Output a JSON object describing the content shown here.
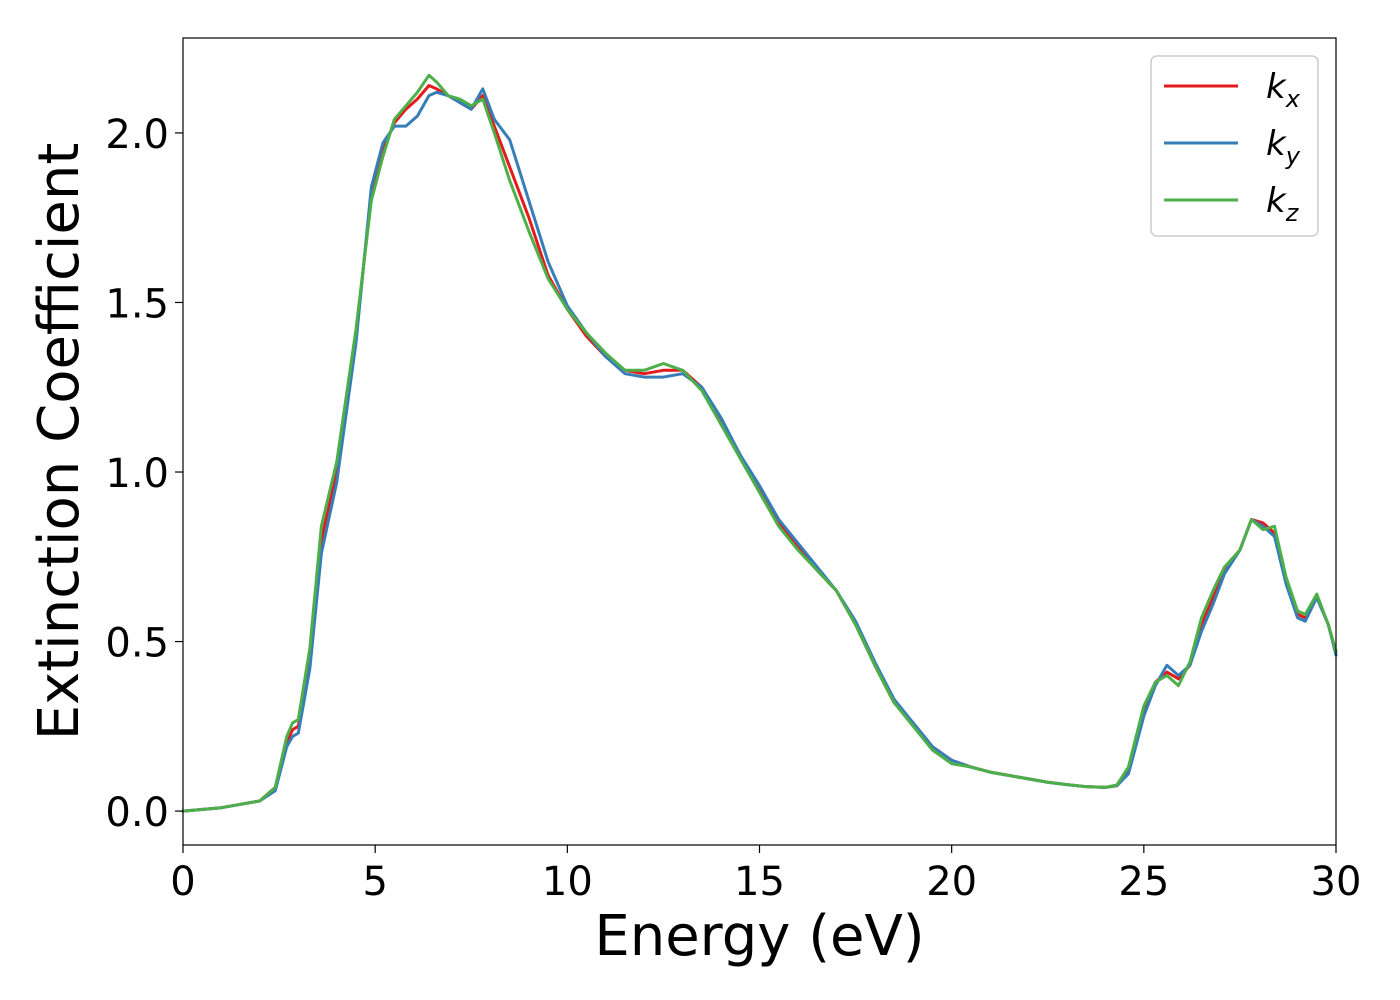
{
  "chart_data": {
    "type": "line",
    "xlabel": "Energy (eV)",
    "ylabel": "Extinction Coefficient",
    "xlim": [
      0,
      30
    ],
    "ylim": [
      -0.1,
      2.28
    ],
    "xticks": [
      0,
      5,
      10,
      15,
      20,
      25,
      30
    ],
    "yticks": [
      0.0,
      0.5,
      1.0,
      1.5,
      2.0
    ],
    "xtick_labels": [
      "0",
      "5",
      "10",
      "15",
      "20",
      "25",
      "30"
    ],
    "ytick_labels": [
      "0.0",
      "0.5",
      "1.0",
      "1.5",
      "2.0"
    ],
    "grid": false,
    "legend": "top-right",
    "series": [
      {
        "name": "k_x",
        "label_main": "k",
        "label_sub": "x",
        "color": "#e41a1c",
        "x": [
          0,
          1,
          2,
          2.4,
          2.7,
          2.85,
          3.0,
          3.3,
          3.6,
          4.0,
          4.5,
          4.9,
          5.2,
          5.5,
          5.8,
          6.1,
          6.4,
          6.6,
          6.9,
          7.2,
          7.5,
          7.8,
          8.1,
          8.5,
          9.0,
          9.5,
          10.0,
          10.5,
          11.0,
          11.5,
          12.0,
          12.5,
          13.0,
          13.5,
          14.0,
          14.5,
          15.0,
          15.5,
          16.0,
          16.5,
          17.0,
          17.5,
          18.0,
          18.5,
          19.0,
          19.5,
          20.0,
          20.5,
          21.0,
          21.5,
          22.0,
          22.5,
          23.0,
          23.5,
          24.0,
          24.3,
          24.6,
          25.0,
          25.3,
          25.6,
          25.9,
          26.2,
          26.5,
          26.8,
          27.1,
          27.5,
          27.8,
          28.1,
          28.4,
          28.7,
          29.0,
          29.2,
          29.5,
          29.8,
          30.0
        ],
        "y": [
          0.0,
          0.01,
          0.03,
          0.07,
          0.2,
          0.24,
          0.25,
          0.45,
          0.8,
          1.0,
          1.4,
          1.82,
          1.95,
          2.03,
          2.07,
          2.1,
          2.14,
          2.13,
          2.11,
          2.09,
          2.07,
          2.11,
          2.02,
          1.9,
          1.75,
          1.58,
          1.48,
          1.4,
          1.34,
          1.3,
          1.29,
          1.3,
          1.3,
          1.25,
          1.15,
          1.05,
          0.95,
          0.85,
          0.78,
          0.71,
          0.65,
          0.55,
          0.43,
          0.32,
          0.26,
          0.19,
          0.15,
          0.13,
          0.115,
          0.105,
          0.095,
          0.085,
          0.078,
          0.072,
          0.07,
          0.075,
          0.12,
          0.3,
          0.38,
          0.41,
          0.39,
          0.43,
          0.55,
          0.63,
          0.71,
          0.77,
          0.86,
          0.85,
          0.82,
          0.68,
          0.58,
          0.57,
          0.63,
          0.55,
          0.47
        ]
      },
      {
        "name": "k_y",
        "label_main": "k",
        "label_sub": "y",
        "color": "#377eb8",
        "x": [
          0,
          1,
          2,
          2.4,
          2.7,
          2.85,
          3.0,
          3.3,
          3.6,
          4.0,
          4.5,
          4.9,
          5.2,
          5.5,
          5.8,
          6.1,
          6.4,
          6.6,
          6.9,
          7.2,
          7.5,
          7.8,
          8.1,
          8.5,
          9.0,
          9.5,
          10.0,
          10.5,
          11.0,
          11.5,
          12.0,
          12.5,
          13.0,
          13.5,
          14.0,
          14.5,
          15.0,
          15.5,
          16.0,
          16.5,
          17.0,
          17.5,
          18.0,
          18.5,
          19.0,
          19.5,
          20.0,
          20.5,
          21.0,
          21.5,
          22.0,
          22.5,
          23.0,
          23.5,
          24.0,
          24.3,
          24.6,
          25.0,
          25.3,
          25.6,
          25.9,
          26.2,
          26.5,
          26.8,
          27.1,
          27.5,
          27.8,
          28.1,
          28.4,
          28.7,
          29.0,
          29.2,
          29.5,
          29.8,
          30.0
        ],
        "y": [
          0.0,
          0.01,
          0.03,
          0.06,
          0.19,
          0.22,
          0.23,
          0.42,
          0.76,
          0.97,
          1.38,
          1.84,
          1.97,
          2.02,
          2.02,
          2.05,
          2.11,
          2.12,
          2.11,
          2.09,
          2.07,
          2.13,
          2.04,
          1.98,
          1.8,
          1.62,
          1.49,
          1.41,
          1.34,
          1.29,
          1.28,
          1.28,
          1.29,
          1.25,
          1.16,
          1.05,
          0.96,
          0.86,
          0.79,
          0.72,
          0.65,
          0.56,
          0.44,
          0.33,
          0.26,
          0.19,
          0.15,
          0.13,
          0.115,
          0.105,
          0.095,
          0.085,
          0.078,
          0.072,
          0.07,
          0.075,
          0.11,
          0.28,
          0.37,
          0.43,
          0.4,
          0.43,
          0.53,
          0.61,
          0.7,
          0.77,
          0.86,
          0.84,
          0.81,
          0.67,
          0.57,
          0.56,
          0.63,
          0.55,
          0.46
        ]
      },
      {
        "name": "k_z",
        "label_main": "k",
        "label_sub": "z",
        "color": "#4daf4a",
        "x": [
          0,
          1,
          2,
          2.4,
          2.7,
          2.85,
          3.0,
          3.3,
          3.6,
          4.0,
          4.5,
          4.9,
          5.2,
          5.5,
          5.8,
          6.1,
          6.4,
          6.6,
          6.9,
          7.2,
          7.5,
          7.8,
          8.1,
          8.5,
          9.0,
          9.5,
          10.0,
          10.5,
          11.0,
          11.5,
          12.0,
          12.5,
          13.0,
          13.5,
          14.0,
          14.5,
          15.0,
          15.5,
          16.0,
          16.5,
          17.0,
          17.5,
          18.0,
          18.5,
          19.0,
          19.5,
          20.0,
          20.5,
          21.0,
          21.5,
          22.0,
          22.5,
          23.0,
          23.5,
          24.0,
          24.3,
          24.6,
          25.0,
          25.3,
          25.6,
          25.9,
          26.2,
          26.5,
          26.8,
          27.1,
          27.5,
          27.8,
          28.1,
          28.4,
          28.7,
          29.0,
          29.2,
          29.5,
          29.8,
          30.0
        ],
        "y": [
          0.0,
          0.01,
          0.03,
          0.07,
          0.22,
          0.26,
          0.27,
          0.48,
          0.84,
          1.03,
          1.42,
          1.8,
          1.93,
          2.04,
          2.08,
          2.12,
          2.17,
          2.15,
          2.11,
          2.1,
          2.08,
          2.1,
          2.0,
          1.86,
          1.71,
          1.57,
          1.48,
          1.41,
          1.35,
          1.3,
          1.3,
          1.32,
          1.3,
          1.24,
          1.14,
          1.04,
          0.94,
          0.84,
          0.77,
          0.71,
          0.65,
          0.55,
          0.43,
          0.32,
          0.25,
          0.18,
          0.14,
          0.13,
          0.115,
          0.105,
          0.095,
          0.085,
          0.078,
          0.072,
          0.07,
          0.077,
          0.13,
          0.31,
          0.38,
          0.4,
          0.37,
          0.44,
          0.57,
          0.65,
          0.72,
          0.77,
          0.86,
          0.83,
          0.84,
          0.69,
          0.59,
          0.58,
          0.64,
          0.55,
          0.47
        ]
      }
    ]
  }
}
